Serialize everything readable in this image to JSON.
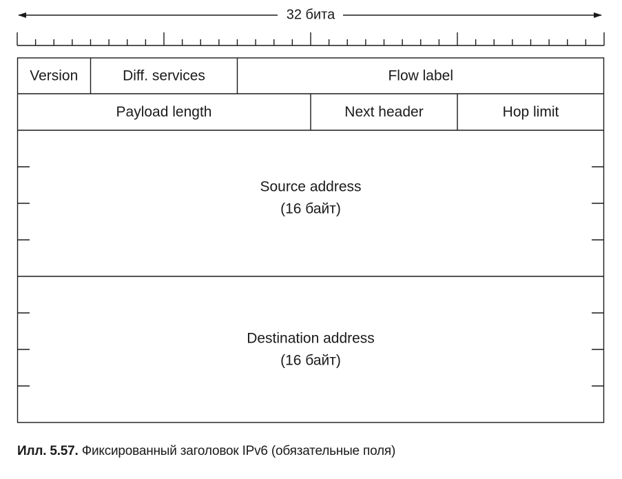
{
  "width_label": "32 бита",
  "header_rows": [
    [
      {
        "name": "Version",
        "bits": 4
      },
      {
        "name": "Diff. services",
        "bits": 8
      },
      {
        "name": "Flow label",
        "bits": 20
      }
    ],
    [
      {
        "name": "Payload length",
        "bits": 16
      },
      {
        "name": "Next header",
        "bits": 8
      },
      {
        "name": "Hop limit",
        "bits": 8
      }
    ]
  ],
  "address_fields": [
    {
      "name": "Source address",
      "size": "(16 байт)"
    },
    {
      "name": "Destination address",
      "size": "(16 байт)"
    }
  ],
  "caption": {
    "number": "Илл. 5.57.",
    "text": "Фиксированный заголовок IPv6 (обязательные поля)"
  }
}
